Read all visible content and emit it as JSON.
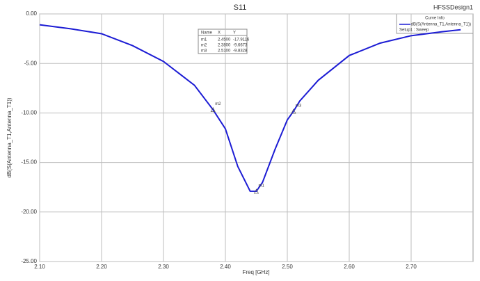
{
  "chart_data": {
    "type": "line",
    "title": "S11",
    "design_name": "HFSSDesign1",
    "x_label": "Freq [GHz]",
    "y_label": "dB(S(Antenna_T1,Antenna_T1))",
    "legend_title": "Curve Info",
    "legend_setup": "Setup1 : Sweep",
    "x": [
      2.1,
      2.15,
      2.2,
      2.25,
      2.3,
      2.35,
      2.38,
      2.4,
      2.42,
      2.44,
      2.45,
      2.46,
      2.48,
      2.5,
      2.51,
      2.52,
      2.55,
      2.6,
      2.65,
      2.7,
      2.75,
      2.78
    ],
    "series": [
      {
        "name": "dB(S(Antenna_T1,Antenna_T1))",
        "color": "#1c1cd4",
        "values": [
          -1.1,
          -1.5,
          -2.0,
          -3.2,
          -4.8,
          -7.2,
          -9.67,
          -11.6,
          -15.4,
          -17.9,
          -17.91,
          -17.0,
          -13.7,
          -10.7,
          -9.83,
          -8.8,
          -6.7,
          -4.2,
          -2.95,
          -2.2,
          -1.8,
          -1.6
        ]
      }
    ],
    "xlim": [
      2.1,
      2.8
    ],
    "xticks": [
      {
        "value": 2.1,
        "label": "2.10"
      },
      {
        "value": 2.2,
        "label": "2.20"
      },
      {
        "value": 2.3,
        "label": "2.30"
      },
      {
        "value": 2.4,
        "label": "2.40"
      },
      {
        "value": 2.5,
        "label": "2.50"
      },
      {
        "value": 2.6,
        "label": "2.60"
      },
      {
        "value": 2.7,
        "label": "2.70"
      }
    ],
    "ylim": [
      -25,
      0
    ],
    "yticks": [
      {
        "value": 0,
        "label": "0.00"
      },
      {
        "value": -5,
        "label": "-5.00"
      },
      {
        "value": -10,
        "label": "-10.00"
      },
      {
        "value": -15,
        "label": "-15.00"
      },
      {
        "value": -20,
        "label": "-20.00"
      },
      {
        "value": -25,
        "label": "-25.00"
      }
    ],
    "grid": true,
    "marker_table_headers": [
      "Name",
      "X",
      "Y"
    ],
    "markers": [
      {
        "name": "m1",
        "x": {
          "value": 2.45,
          "label": "2.4500"
        },
        "y": -17.9116
      },
      {
        "name": "m2",
        "x": {
          "value": 2.38,
          "label": "2.3800"
        },
        "y": -9.6673
      },
      {
        "name": "m3",
        "x": {
          "value": 2.51,
          "label": "2.5100"
        },
        "y": -9.8328
      }
    ]
  }
}
